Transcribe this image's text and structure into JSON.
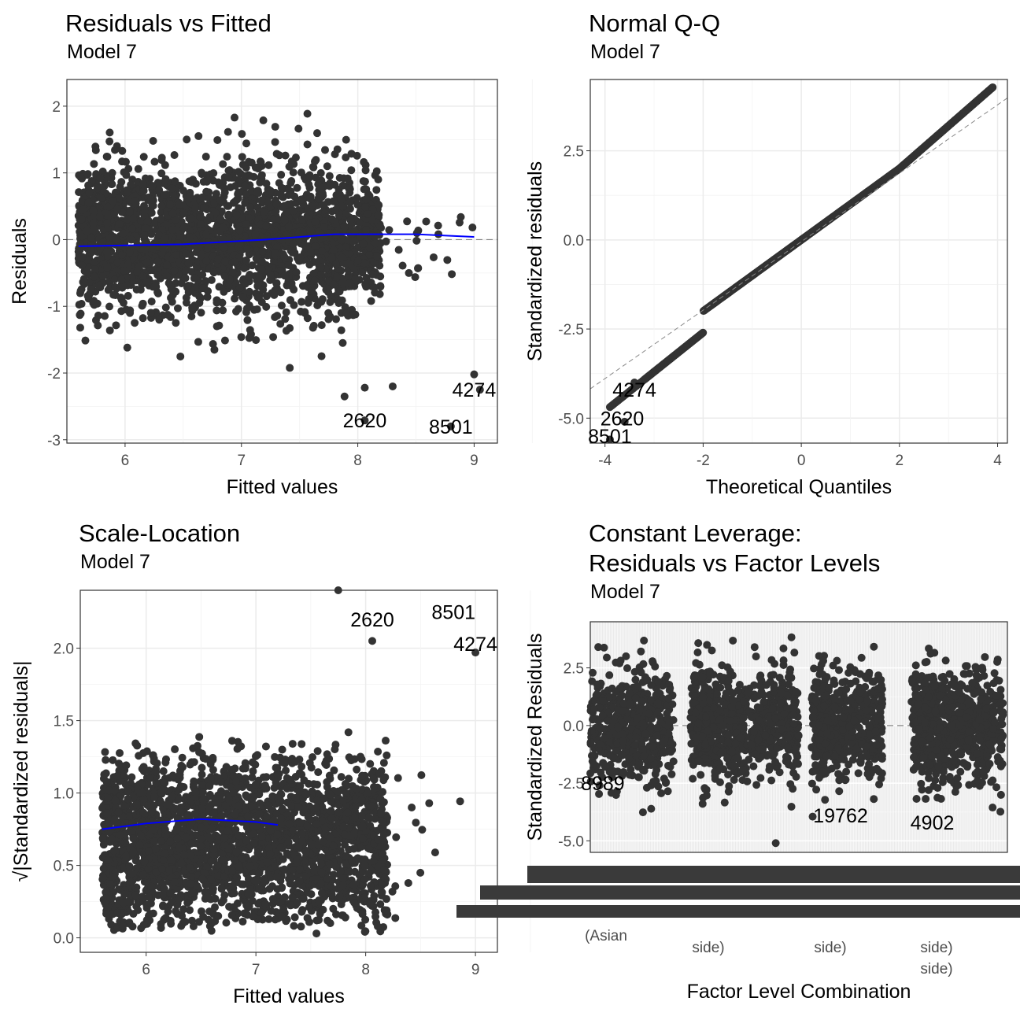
{
  "chart_data": [
    {
      "type": "scatter",
      "title": "Residuals vs Fitted",
      "subtitle": "Model 7",
      "xlabel": "Fitted values",
      "ylabel": "Residuals",
      "xlim": [
        5.5,
        9.2
      ],
      "ylim": [
        -3.05,
        2.4
      ],
      "xticks": [
        "6",
        "7",
        "8",
        "9"
      ],
      "yticks": [
        "-3",
        "-2",
        "-1",
        "0",
        "1",
        "2"
      ],
      "grid": true,
      "reference_line": 0,
      "smooth": {
        "x": [
          5.6,
          6.5,
          7.2,
          7.8,
          8.5,
          9.0
        ],
        "y": [
          -0.1,
          -0.07,
          0.0,
          0.08,
          0.08,
          0.04
        ]
      },
      "labels": [
        {
          "text": "4274",
          "x": 9.0,
          "y": -2.25
        },
        {
          "text": "2620",
          "x": 8.06,
          "y": -2.71
        },
        {
          "text": "8501",
          "x": 8.8,
          "y": -2.8
        }
      ]
    },
    {
      "type": "scatter",
      "title": "Normal Q-Q",
      "subtitle": "Model 7",
      "xlabel": "Theoretical Quantiles",
      "ylabel": "Standardized residuals",
      "xlim": [
        -4.3,
        4.2
      ],
      "ylim": [
        -5.7,
        4.5
      ],
      "xticks": [
        "-4",
        "-2",
        "0",
        "2",
        "4"
      ],
      "yticks": [
        "-5.0",
        "-2.5",
        "0.0",
        "2.5"
      ],
      "grid": true,
      "labels": [
        {
          "text": "4274",
          "x": -3.4,
          "y": -4.2
        },
        {
          "text": "2620",
          "x": -3.65,
          "y": -5.0
        },
        {
          "text": "8501",
          "x": -3.9,
          "y": -5.5
        }
      ]
    },
    {
      "type": "scatter",
      "title": "Scale-Location",
      "subtitle": "Model 7",
      "xlabel": "Fitted values",
      "ylabel": "√|Standardized residuals|",
      "xlim": [
        5.4,
        9.2
      ],
      "ylim": [
        -0.1,
        2.4
      ],
      "xticks": [
        "6",
        "7",
        "8",
        "9"
      ],
      "yticks": [
        "0.0",
        "0.5",
        "1.0",
        "1.5",
        "2.0"
      ],
      "grid": true,
      "smooth": {
        "x": [
          5.6,
          6.0,
          6.5,
          7.0,
          7.2
        ],
        "y": [
          0.75,
          0.79,
          0.82,
          0.8,
          0.78
        ]
      },
      "labels": [
        {
          "text": "2620",
          "x": 8.06,
          "y": 2.2
        },
        {
          "text": "8501",
          "x": 8.8,
          "y": 2.25
        },
        {
          "text": "4274",
          "x": 9.0,
          "y": 2.03
        }
      ]
    },
    {
      "type": "scatter",
      "title": "Constant Leverage:",
      "title2": "Residuals vs Factor Levels",
      "subtitle": "Model 7",
      "xlabel": "Factor Level Combination",
      "ylabel": "Standardized Residuals",
      "ylim": [
        -5.5,
        4.5
      ],
      "yticks": [
        "-5.0",
        "-2.5",
        "0.0",
        "2.5"
      ],
      "grid": true,
      "reference_line": 0,
      "labels": [
        {
          "text": "8989",
          "x": 0.03,
          "y": -2.5
        },
        {
          "text": "19762",
          "x": 0.6,
          "y": -3.9
        },
        {
          "text": "4902",
          "x": 0.82,
          "y": -4.2
        }
      ],
      "xtick_fragments": [
        "(Asian",
        "side)",
        "side)",
        "side)",
        "side)"
      ]
    }
  ]
}
